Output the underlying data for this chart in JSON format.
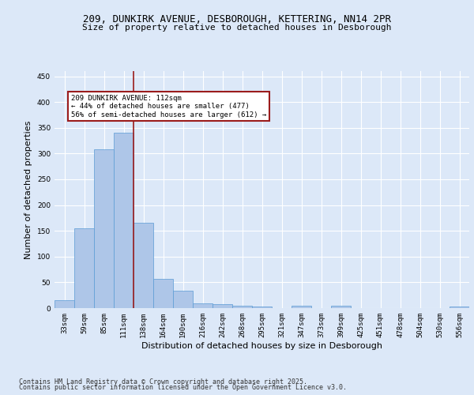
{
  "title1": "209, DUNKIRK AVENUE, DESBOROUGH, KETTERING, NN14 2PR",
  "title2": "Size of property relative to detached houses in Desborough",
  "xlabel": "Distribution of detached houses by size in Desborough",
  "ylabel": "Number of detached properties",
  "categories": [
    "33sqm",
    "59sqm",
    "85sqm",
    "111sqm",
    "138sqm",
    "164sqm",
    "190sqm",
    "216sqm",
    "242sqm",
    "268sqm",
    "295sqm",
    "321sqm",
    "347sqm",
    "373sqm",
    "399sqm",
    "425sqm",
    "451sqm",
    "478sqm",
    "504sqm",
    "530sqm",
    "556sqm"
  ],
  "values": [
    15,
    155,
    308,
    340,
    165,
    57,
    33,
    9,
    7,
    5,
    3,
    0,
    4,
    0,
    5,
    0,
    0,
    0,
    0,
    0,
    3
  ],
  "bar_color": "#aec6e8",
  "bar_edge_color": "#5a9bd5",
  "bar_width": 1.0,
  "ylim": [
    0,
    460
  ],
  "yticks": [
    0,
    50,
    100,
    150,
    200,
    250,
    300,
    350,
    400,
    450
  ],
  "vline_x": 3.5,
  "vline_color": "#9b1c1c",
  "annotation_text": "209 DUNKIRK AVENUE: 112sqm\n← 44% of detached houses are smaller (477)\n56% of semi-detached houses are larger (612) →",
  "annotation_box_color": "#ffffff",
  "annotation_border_color": "#9b1c1c",
  "footer1": "Contains HM Land Registry data © Crown copyright and database right 2025.",
  "footer2": "Contains public sector information licensed under the Open Government Licence v3.0.",
  "bg_color": "#dce8f8",
  "plot_bg_color": "#dce8f8",
  "grid_color": "#ffffff",
  "title_fontsize": 9,
  "subtitle_fontsize": 8,
  "tick_fontsize": 6.5,
  "label_fontsize": 8,
  "footer_fontsize": 6
}
